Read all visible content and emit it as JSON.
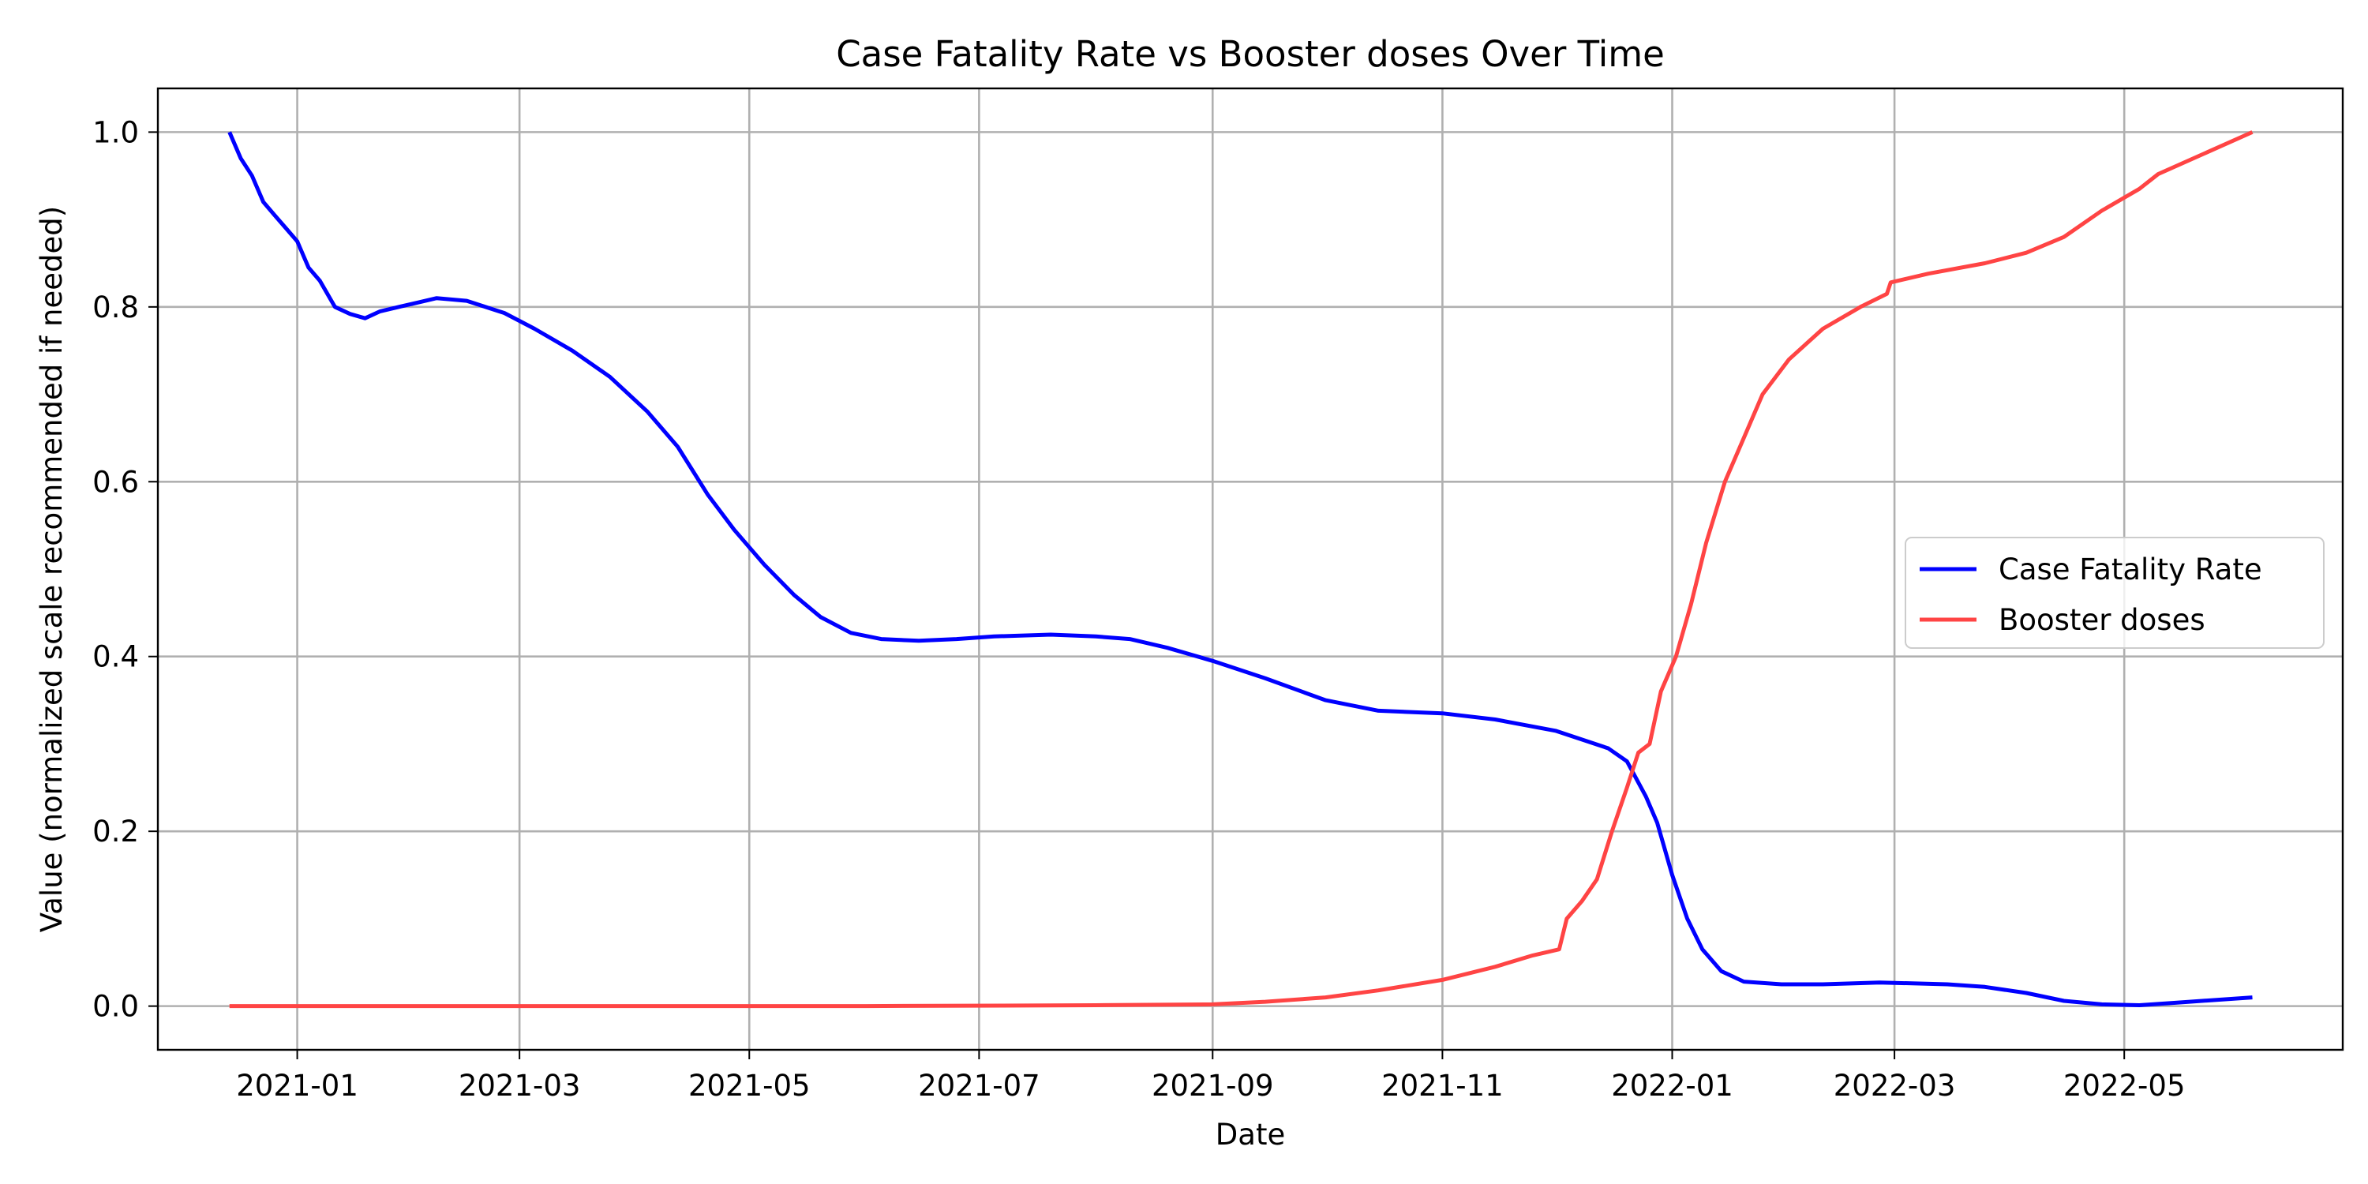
{
  "chart_data": {
    "type": "line",
    "title": "Case Fatality Rate vs Booster doses Over Time",
    "xlabel": "Date",
    "ylabel": "Value (normalized scale recommended if needed)",
    "xlim": [
      "2020-11-25",
      "2022-06-28"
    ],
    "ylim": [
      -0.05,
      1.05
    ],
    "x_ticks": [
      "2021-01",
      "2021-03",
      "2021-05",
      "2021-07",
      "2021-09",
      "2021-11",
      "2022-01",
      "2022-03",
      "2022-05"
    ],
    "y_ticks": [
      "0.0",
      "0.2",
      "0.4",
      "0.6",
      "0.8",
      "1.0"
    ],
    "grid": true,
    "legend_position": "center-right",
    "series": [
      {
        "name": "Case Fatality Rate",
        "color": "#0000ff",
        "points": [
          [
            "2020-12-14",
            1.0
          ],
          [
            "2020-12-17",
            0.97
          ],
          [
            "2020-12-20",
            0.95
          ],
          [
            "2020-12-23",
            0.92
          ],
          [
            "2020-12-26",
            0.905
          ],
          [
            "2020-12-29",
            0.89
          ],
          [
            "2021-01-01",
            0.875
          ],
          [
            "2021-01-04",
            0.845
          ],
          [
            "2021-01-07",
            0.83
          ],
          [
            "2021-01-11",
            0.8
          ],
          [
            "2021-01-15",
            0.792
          ],
          [
            "2021-01-19",
            0.787
          ],
          [
            "2021-01-23",
            0.795
          ],
          [
            "2021-01-28",
            0.8
          ],
          [
            "2021-02-02",
            0.805
          ],
          [
            "2021-02-07",
            0.81
          ],
          [
            "2021-02-15",
            0.807
          ],
          [
            "2021-02-25",
            0.793
          ],
          [
            "2021-03-05",
            0.775
          ],
          [
            "2021-03-15",
            0.75
          ],
          [
            "2021-03-25",
            0.72
          ],
          [
            "2021-04-04",
            0.68
          ],
          [
            "2021-04-12",
            0.64
          ],
          [
            "2021-04-20",
            0.585
          ],
          [
            "2021-04-27",
            0.545
          ],
          [
            "2021-05-05",
            0.505
          ],
          [
            "2021-05-13",
            0.47
          ],
          [
            "2021-05-20",
            0.445
          ],
          [
            "2021-05-28",
            0.427
          ],
          [
            "2021-06-05",
            0.42
          ],
          [
            "2021-06-15",
            0.418
          ],
          [
            "2021-06-25",
            0.42
          ],
          [
            "2021-07-05",
            0.423
          ],
          [
            "2021-07-20",
            0.425
          ],
          [
            "2021-08-01",
            0.423
          ],
          [
            "2021-08-10",
            0.42
          ],
          [
            "2021-08-20",
            0.41
          ],
          [
            "2021-09-01",
            0.395
          ],
          [
            "2021-09-15",
            0.375
          ],
          [
            "2021-10-01",
            0.35
          ],
          [
            "2021-10-15",
            0.338
          ],
          [
            "2021-11-01",
            0.335
          ],
          [
            "2021-11-15",
            0.328
          ],
          [
            "2021-12-01",
            0.315
          ],
          [
            "2021-12-15",
            0.295
          ],
          [
            "2021-12-20",
            0.28
          ],
          [
            "2021-12-25",
            0.24
          ],
          [
            "2021-12-28",
            0.21
          ],
          [
            "2022-01-01",
            0.15
          ],
          [
            "2022-01-05",
            0.1
          ],
          [
            "2022-01-09",
            0.065
          ],
          [
            "2022-01-14",
            0.04
          ],
          [
            "2022-01-20",
            0.028
          ],
          [
            "2022-01-30",
            0.025
          ],
          [
            "2022-02-10",
            0.025
          ],
          [
            "2022-02-25",
            0.027
          ],
          [
            "2022-03-15",
            0.025
          ],
          [
            "2022-03-25",
            0.022
          ],
          [
            "2022-04-05",
            0.015
          ],
          [
            "2022-04-15",
            0.006
          ],
          [
            "2022-04-25",
            0.002
          ],
          [
            "2022-05-05",
            0.001
          ],
          [
            "2022-05-15",
            0.004
          ],
          [
            "2022-06-04",
            0.01
          ]
        ]
      },
      {
        "name": "Booster doses",
        "color": "#ff4444",
        "points": [
          [
            "2020-12-14",
            0.0
          ],
          [
            "2021-03-01",
            0.0
          ],
          [
            "2021-06-01",
            0.0
          ],
          [
            "2021-08-01",
            0.001
          ],
          [
            "2021-09-01",
            0.002
          ],
          [
            "2021-09-15",
            0.005
          ],
          [
            "2021-10-01",
            0.01
          ],
          [
            "2021-10-15",
            0.018
          ],
          [
            "2021-11-01",
            0.03
          ],
          [
            "2021-11-15",
            0.045
          ],
          [
            "2021-11-25",
            0.058
          ],
          [
            "2021-12-02",
            0.065
          ],
          [
            "2021-12-04",
            0.1
          ],
          [
            "2021-12-08",
            0.12
          ],
          [
            "2021-12-12",
            0.145
          ],
          [
            "2021-12-16",
            0.2
          ],
          [
            "2021-12-20",
            0.25
          ],
          [
            "2021-12-23",
            0.29
          ],
          [
            "2021-12-26",
            0.3
          ],
          [
            "2021-12-29",
            0.36
          ],
          [
            "2022-01-02",
            0.4
          ],
          [
            "2022-01-06",
            0.46
          ],
          [
            "2022-01-10",
            0.53
          ],
          [
            "2022-01-15",
            0.6
          ],
          [
            "2022-01-20",
            0.65
          ],
          [
            "2022-01-25",
            0.7
          ],
          [
            "2022-02-01",
            0.74
          ],
          [
            "2022-02-10",
            0.775
          ],
          [
            "2022-02-20",
            0.8
          ],
          [
            "2022-02-27",
            0.815
          ],
          [
            "2022-02-28",
            0.828
          ],
          [
            "2022-03-10",
            0.838
          ],
          [
            "2022-03-25",
            0.85
          ],
          [
            "2022-04-05",
            0.862
          ],
          [
            "2022-04-15",
            0.88
          ],
          [
            "2022-04-25",
            0.91
          ],
          [
            "2022-05-05",
            0.935
          ],
          [
            "2022-05-10",
            0.952
          ],
          [
            "2022-06-04",
            1.0
          ]
        ]
      }
    ]
  }
}
